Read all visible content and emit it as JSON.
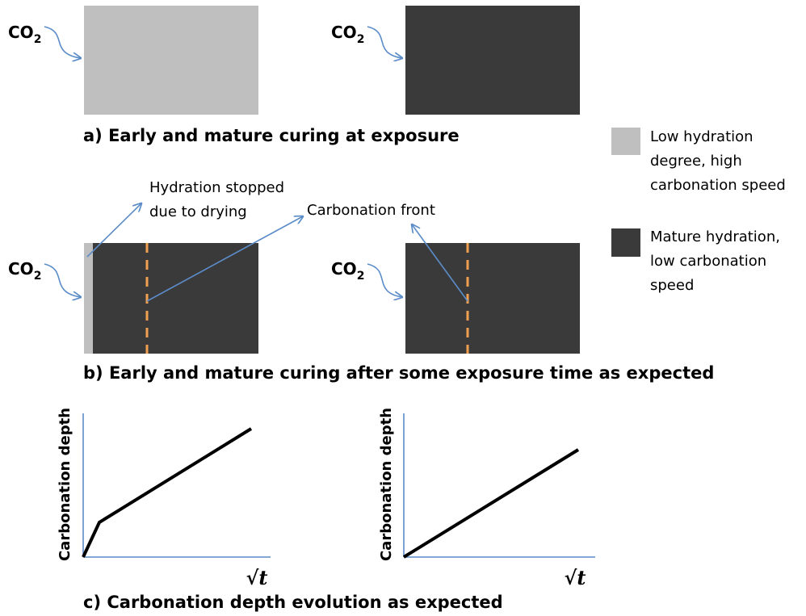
{
  "panel_a": {
    "caption": "a) Early and mature curing at exposure"
  },
  "panel_b": {
    "caption": "b) Early and mature curing after some exposure time as expected",
    "annotation_hydration": [
      "Hydration stopped",
      "due to drying"
    ],
    "annotation_front": "Carbonation front"
  },
  "panel_c": {
    "caption": "c) Carbonation depth evolution as expected",
    "graphs": [
      {
        "y_label": "Carbonation depth",
        "x_label": "√t"
      },
      {
        "y_label": "Carbonation depth",
        "x_label": "√t"
      }
    ]
  },
  "co2_labels": [
    {
      "text": "CO",
      "sub": "2"
    },
    {
      "text": "CO",
      "sub": "2"
    },
    {
      "text": "CO",
      "sub": "2"
    },
    {
      "text": "CO",
      "sub": "2"
    }
  ],
  "legend": [
    {
      "lines": [
        "Low hydration",
        "degree, high",
        "carbonation speed"
      ]
    },
    {
      "lines": [
        "Mature hydration,",
        "low carbonation",
        "speed"
      ]
    }
  ]
}
